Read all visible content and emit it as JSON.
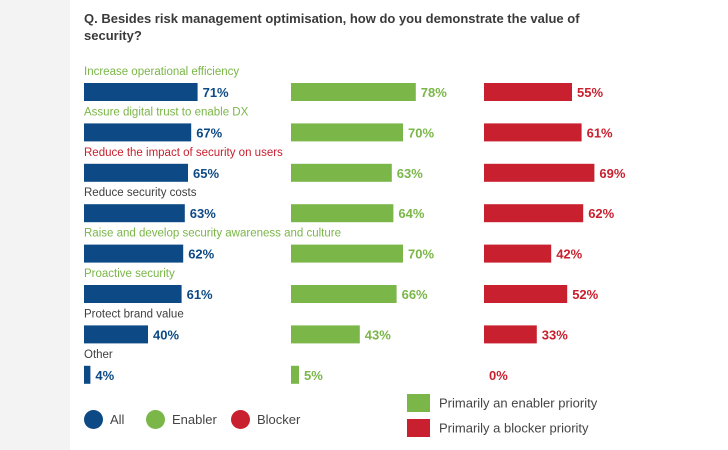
{
  "question": "Q. Besides risk management optimisation, how do you demonstrate the value of security?",
  "colors": {
    "all": "#0d4a85",
    "enabler": "#7ab648",
    "blocker": "#c8202e",
    "neutral": "#3f3f3f"
  },
  "chart_data": {
    "type": "bar",
    "orientation": "horizontal",
    "title": "Q. Besides risk management optimisation, how do you demonstrate the value of security?",
    "categories": [
      {
        "label": "Increase operational efficiency",
        "highlight": "enabler"
      },
      {
        "label": "Assure digital trust to enable DX",
        "highlight": "enabler"
      },
      {
        "label": "Reduce the impact of security on users",
        "highlight": "blocker"
      },
      {
        "label": "Reduce security costs",
        "highlight": "neutral"
      },
      {
        "label": "Raise and develop security awareness and culture",
        "highlight": "enabler"
      },
      {
        "label": "Proactive security",
        "highlight": "enabler"
      },
      {
        "label": "Protect brand value",
        "highlight": "neutral"
      },
      {
        "label": "Other",
        "highlight": "neutral"
      }
    ],
    "series": [
      {
        "name": "All",
        "key": "all",
        "values": [
          71,
          67,
          65,
          63,
          62,
          61,
          40,
          4
        ]
      },
      {
        "name": "Enabler",
        "key": "enabler",
        "values": [
          78,
          70,
          63,
          64,
          70,
          66,
          43,
          5
        ]
      },
      {
        "name": "Blocker",
        "key": "blocker",
        "values": [
          55,
          61,
          69,
          62,
          42,
          52,
          33,
          0
        ]
      }
    ],
    "value_suffix": "%",
    "xlim": [
      0,
      100
    ]
  },
  "legend": {
    "all": "All",
    "enabler": "Enabler",
    "blocker": "Blocker",
    "enabler_priority": "Primarily an enabler priority",
    "blocker_priority": "Primarily a blocker priority"
  }
}
